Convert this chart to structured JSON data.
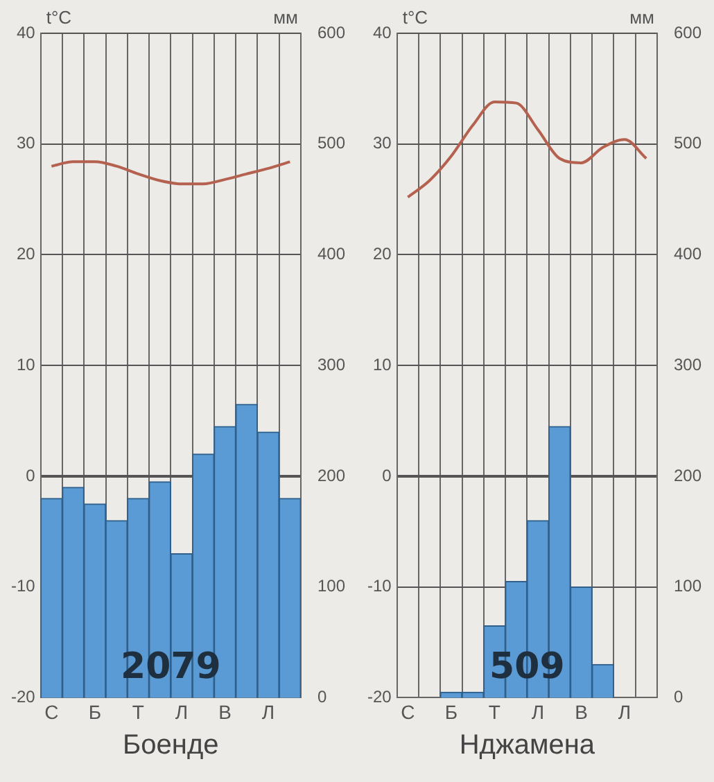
{
  "chart_data": [
    {
      "type": "bar",
      "xlabel": "Боенде",
      "ylabel": "t°C",
      "y2label": "мм",
      "categories": [
        "С",
        null,
        "Б",
        null,
        "Т",
        null,
        "Л",
        null,
        "В",
        null,
        "Л",
        null
      ],
      "series": [
        {
          "axis": "y2",
          "color": "#5b9bd5",
          "values": [
            180,
            190,
            175,
            160,
            180,
            195,
            130,
            220,
            245,
            265,
            240,
            180
          ]
        },
        {
          "type": "line",
          "color": "#b5614f",
          "values": [
            28,
            28.4,
            28.4,
            28,
            27.3,
            26.7,
            26.4,
            26.4,
            26.8,
            27.3,
            27.8,
            28.4
          ]
        }
      ],
      "ylim": [
        -20,
        40
      ],
      "yticks": [
        -20,
        -10,
        0,
        10,
        20,
        30,
        40
      ],
      "y2lim": [
        0,
        600
      ],
      "y2ticks": [
        0,
        100,
        200,
        300,
        400,
        500,
        600
      ],
      "grid": true,
      "legend": false,
      "marker": "none",
      "annotations": [
        "2079"
      ]
    },
    {
      "type": "bar",
      "xlabel": "Нджамена",
      "ylabel": "t°C",
      "y2label": "мм",
      "categories": [
        "С",
        null,
        "Б",
        null,
        "Т",
        null,
        "Л",
        null,
        "В",
        null,
        "Л",
        null
      ],
      "series": [
        {
          "axis": "y2",
          "color": "#5b9bd5",
          "values": [
            0,
            0,
            5,
            5,
            65,
            105,
            160,
            245,
            100,
            30,
            0,
            0
          ]
        },
        {
          "type": "line",
          "color": "#b5614f",
          "values": [
            25.2,
            26.7,
            28.9,
            31.7,
            33.8,
            33.7,
            31.3,
            28.7,
            28.3,
            29.7,
            30.4,
            28.7
          ]
        }
      ],
      "ylim": [
        -20,
        40
      ],
      "yticks": [
        -20,
        -10,
        0,
        10,
        20,
        30,
        40
      ],
      "y2lim": [
        0,
        600
      ],
      "y2ticks": [
        0,
        100,
        200,
        300,
        400,
        500,
        600
      ],
      "grid": true,
      "legend": false,
      "marker": "none",
      "annotations": [
        "509"
      ]
    }
  ]
}
